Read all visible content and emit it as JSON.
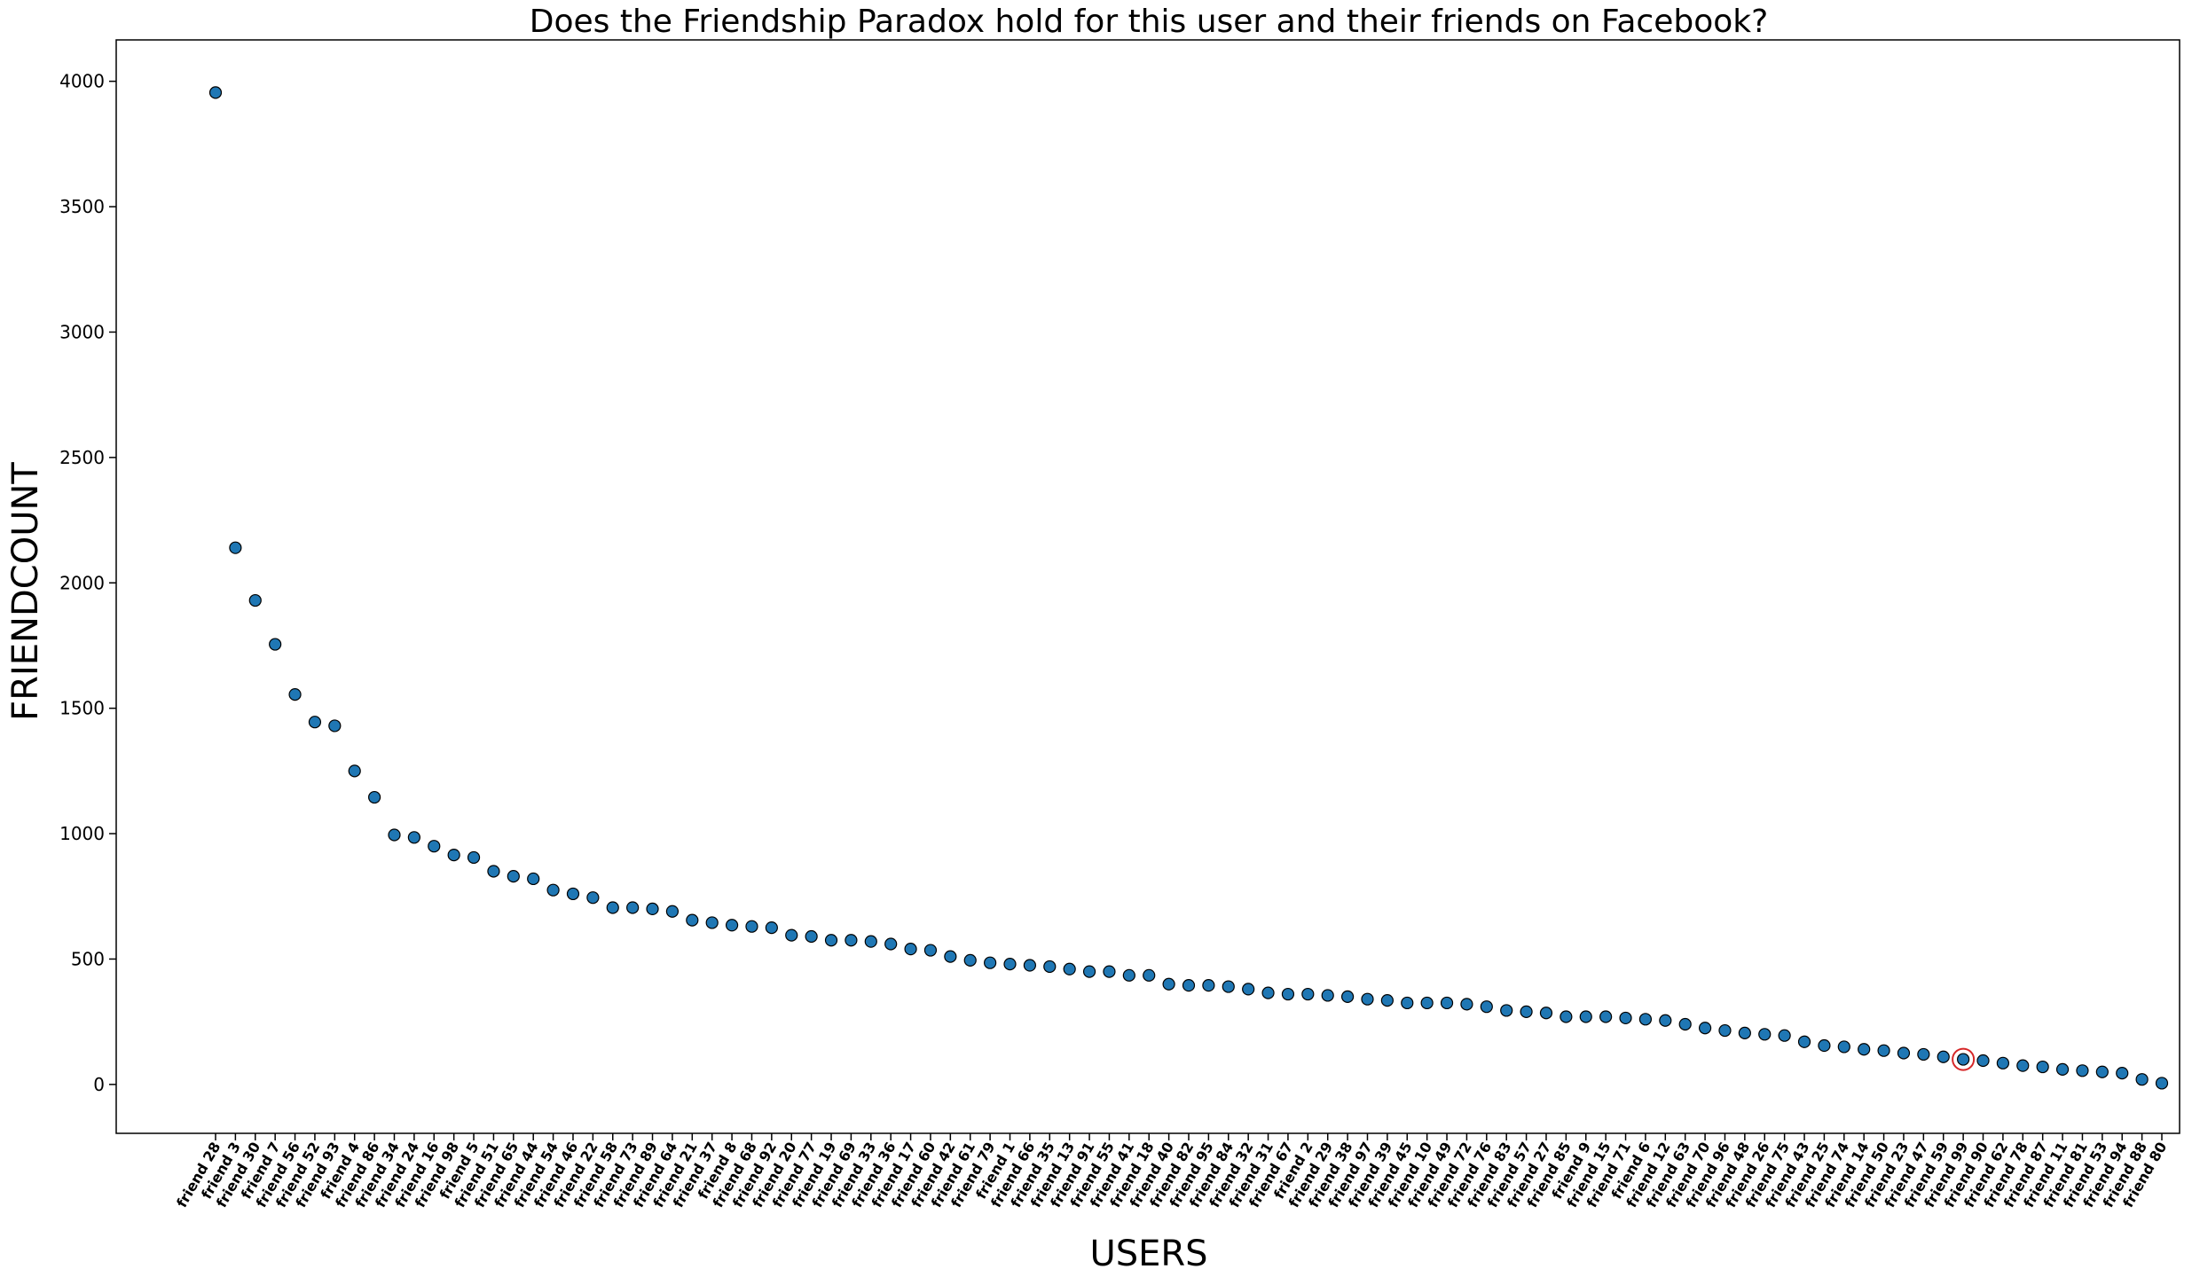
{
  "chart_data": {
    "type": "scatter",
    "title": "Does the Friendship Paradox hold for this user and their friends on Facebook?",
    "xlabel": "USERS",
    "ylabel": "FRIENDCOUNT",
    "ylim": [
      -195,
      4165
    ],
    "yticks": [
      0,
      500,
      1000,
      1500,
      2000,
      2500,
      3000,
      3500,
      4000
    ],
    "grid": false,
    "marker_color": "#1f77b4",
    "marker_edge_color": "#000000",
    "highlight_color": "#d62728",
    "highlight": "friend 99",
    "categories": [
      "friend 28",
      "friend 3",
      "friend 30",
      "friend 7",
      "friend 56",
      "friend 52",
      "friend 93",
      "friend 4",
      "friend 86",
      "friend 34",
      "friend 24",
      "friend 16",
      "friend 98",
      "friend 5",
      "friend 51",
      "friend 65",
      "friend 44",
      "friend 54",
      "friend 46",
      "friend 22",
      "friend 58",
      "friend 73",
      "friend 89",
      "friend 64",
      "friend 21",
      "friend 37",
      "friend 8",
      "friend 68",
      "friend 92",
      "friend 20",
      "friend 77",
      "friend 19",
      "friend 69",
      "friend 33",
      "friend 36",
      "friend 17",
      "friend 60",
      "friend 42",
      "friend 61",
      "friend 79",
      "friend 1",
      "friend 66",
      "friend 35",
      "friend 13",
      "friend 91",
      "friend 55",
      "friend 41",
      "friend 18",
      "friend 40",
      "friend 82",
      "friend 95",
      "friend 84",
      "friend 32",
      "friend 31",
      "friend 67",
      "friend 2",
      "friend 29",
      "friend 38",
      "friend 97",
      "friend 39",
      "friend 45",
      "friend 10",
      "friend 49",
      "friend 72",
      "friend 76",
      "friend 83",
      "friend 57",
      "friend 27",
      "friend 85",
      "friend 9",
      "friend 15",
      "friend 71",
      "friend 6",
      "friend 12",
      "friend 63",
      "friend 70",
      "friend 96",
      "friend 48",
      "friend 26",
      "friend 75",
      "friend 43",
      "friend 25",
      "friend 74",
      "friend 14",
      "friend 50",
      "friend 23",
      "friend 47",
      "friend 59",
      "friend 99",
      "friend 90",
      "friend 62",
      "friend 78",
      "friend 87",
      "friend 11",
      "friend 81",
      "friend 53",
      "friend 94",
      "friend 88",
      "friend 80"
    ],
    "values": [
      3955,
      2140,
      1930,
      1755,
      1555,
      1445,
      1430,
      1250,
      1145,
      995,
      985,
      950,
      915,
      905,
      850,
      830,
      820,
      775,
      760,
      745,
      705,
      705,
      700,
      690,
      655,
      645,
      635,
      630,
      625,
      595,
      590,
      575,
      575,
      570,
      560,
      540,
      535,
      510,
      495,
      485,
      480,
      475,
      470,
      460,
      450,
      450,
      435,
      435,
      400,
      395,
      395,
      390,
      380,
      365,
      360,
      360,
      355,
      350,
      340,
      335,
      325,
      325,
      325,
      320,
      310,
      295,
      290,
      285,
      270,
      270,
      270,
      265,
      260,
      255,
      240,
      225,
      215,
      205,
      200,
      195,
      170,
      155,
      150,
      140,
      135,
      125,
      120,
      110,
      100,
      95,
      85,
      75,
      70,
      60,
      55,
      50,
      45,
      20,
      5
    ]
  }
}
